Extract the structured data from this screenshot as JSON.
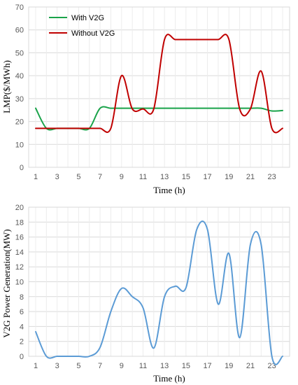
{
  "chart_data": [
    {
      "type": "line",
      "title": "",
      "xlabel": "Time (h)",
      "ylabel": "LMP($/MWh)",
      "xlim": [
        1,
        24
      ],
      "ylim": [
        0,
        70
      ],
      "x_ticks": [
        1,
        3,
        5,
        7,
        9,
        11,
        13,
        15,
        17,
        19,
        21,
        23
      ],
      "y_ticks": [
        0,
        10,
        20,
        30,
        40,
        50,
        60,
        70
      ],
      "grid": true,
      "legend": "top-left",
      "x": [
        1,
        2,
        3,
        4,
        5,
        6,
        7,
        8,
        9,
        10,
        11,
        12,
        13,
        14,
        15,
        16,
        17,
        18,
        19,
        20,
        21,
        22,
        23,
        24
      ],
      "series": [
        {
          "name": "With V2G",
          "color": "#1aa34a",
          "values": [
            25.8,
            17,
            17,
            17,
            17,
            17,
            25.8,
            25.8,
            25.8,
            25.8,
            25.8,
            25.8,
            25.8,
            25.8,
            25.8,
            25.8,
            25.8,
            25.8,
            25.8,
            25.8,
            25.8,
            25.8,
            24.6,
            24.8
          ]
        },
        {
          "name": "Without V2G",
          "color": "#c00000",
          "values": [
            17,
            17,
            17,
            17,
            17,
            17,
            17,
            17,
            40,
            25.5,
            25.5,
            25.5,
            55.8,
            55.8,
            55.8,
            55.8,
            55.8,
            55.8,
            55.8,
            25.5,
            25.5,
            42,
            17,
            17
          ]
        }
      ]
    },
    {
      "type": "line",
      "title": "",
      "xlabel": "Time (h)",
      "ylabel": "V2G Power Generation(MW)",
      "xlim": [
        1,
        24
      ],
      "ylim": [
        0,
        20
      ],
      "x_ticks": [
        1,
        3,
        5,
        7,
        9,
        11,
        13,
        15,
        17,
        19,
        21,
        23
      ],
      "y_ticks": [
        0,
        2,
        4,
        6,
        8,
        10,
        12,
        14,
        16,
        18,
        20
      ],
      "grid": true,
      "legend": "none",
      "x": [
        1,
        2,
        3,
        4,
        5,
        6,
        7,
        8,
        9,
        10,
        11,
        12,
        13,
        14,
        15,
        16,
        17,
        18,
        19,
        20,
        21,
        22,
        23,
        24
      ],
      "series": [
        {
          "color": "#5b9bd5",
          "values": [
            3.3,
            0,
            0,
            0,
            0,
            0,
            1.2,
            6,
            9.1,
            8,
            6.5,
            1.1,
            8,
            9.4,
            9.2,
            17,
            17,
            7,
            13.8,
            2.5,
            15,
            15,
            0,
            0
          ]
        }
      ]
    }
  ]
}
